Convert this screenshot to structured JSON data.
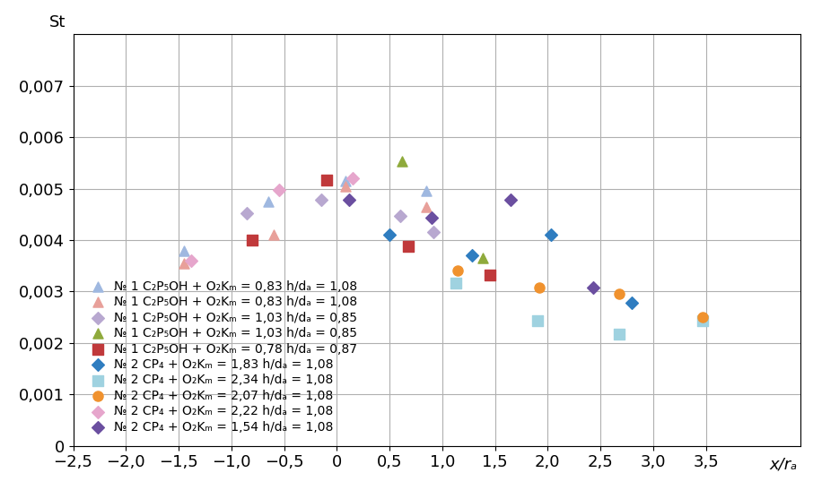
{
  "chart_data": {
    "type": "scatter",
    "x_label": "x/rₐ",
    "y_label": "St",
    "xlim": [
      -2.5,
      4.4
    ],
    "ylim": [
      0,
      0.008
    ],
    "xticks": [
      {
        "value": -2.5,
        "label": "−2,5"
      },
      {
        "value": -2.0,
        "label": "−2,0"
      },
      {
        "value": -1.5,
        "label": "−1,5"
      },
      {
        "value": -1.0,
        "label": "−1,0"
      },
      {
        "value": -0.5,
        "label": "−0,5"
      },
      0,
      {
        "value": 0.5,
        "label": "0,5"
      },
      {
        "value": 1.0,
        "label": "1,0"
      },
      {
        "value": 1.5,
        "label": "1,5"
      },
      {
        "value": 2.0,
        "label": "2,0"
      },
      {
        "value": 2.5,
        "label": "2,5"
      },
      {
        "value": 3.0,
        "label": "3,0"
      },
      {
        "value": 3.5,
        "label": "3,5"
      }
    ],
    "yticks": [
      0,
      {
        "value": 0.001,
        "label": "0,001"
      },
      {
        "value": 0.002,
        "label": "0,002"
      },
      {
        "value": 0.003,
        "label": "0,003"
      },
      {
        "value": 0.004,
        "label": "0,004"
      },
      {
        "value": 0.005,
        "label": "0,005"
      },
      {
        "value": 0.006,
        "label": "0,006"
      },
      {
        "value": 0.007,
        "label": "0,007"
      }
    ],
    "grid": true,
    "legend": "lower left",
    "series": [
      {
        "name": "№ 1 C₂P₅OH + O₂Kₘ = 0,83 h/dₐ = 1,08",
        "color": "#9fb8e0",
        "marker": "triangle",
        "x": [
          -1.45,
          -0.65,
          0.08,
          0.85
        ],
        "values": [
          0.0038,
          0.00475,
          0.00515,
          0.00495
        ]
      },
      {
        "name": "№ 1 C₂P₅OH + O₂Kₘ = 0,83 h/dₐ = 1,08",
        "color": "#e8a09a",
        "marker": "triangle",
        "x": [
          -1.45,
          -0.6,
          0.08,
          0.85
        ],
        "values": [
          0.00355,
          0.0041,
          0.00505,
          0.00465
        ]
      },
      {
        "name": "№ 1 C₂P₅OH + O₂Kₘ = 1,03 h/dₐ = 0,85",
        "color": "#b8a8d0",
        "marker": "diamond",
        "x": [
          -0.85,
          -0.15,
          0.6,
          0.92
        ],
        "values": [
          0.00453,
          0.00478,
          0.00447,
          0.00415
        ]
      },
      {
        "name": "№ 1 C₂P₅OH + O₂Kₘ = 1,03 h/dₐ = 0,85",
        "color": "#8faa3c",
        "marker": "triangle",
        "x": [
          0.62,
          1.38
        ],
        "values": [
          0.00553,
          0.00365
        ]
      },
      {
        "name": "№ 1 C₂P₅OH + O₂Kₘ = 0,78 h/dₐ = 0,87",
        "color": "#c0393b",
        "marker": "square",
        "x": [
          -0.8,
          -0.1,
          0.68,
          1.45
        ],
        "values": [
          0.004,
          0.00517,
          0.00387,
          0.00333
        ]
      },
      {
        "name": "№ 2 CP₄ + O₂Kₘ = 1,83 h/dₐ = 1,08",
        "color": "#2f7dc0",
        "marker": "diamond",
        "x": [
          0.5,
          1.28,
          2.03,
          2.8
        ],
        "values": [
          0.0041,
          0.0037,
          0.0041,
          0.00278
        ]
      },
      {
        "name": "№ 2 CP₄ + O₂Kₘ = 2,34 h/dₐ = 1,08",
        "color": "#9fd2e0",
        "marker": "square",
        "x": [
          1.13,
          1.9,
          2.68,
          3.47
        ],
        "values": [
          0.00316,
          0.00243,
          0.00218,
          0.00243
        ]
      },
      {
        "name": "№ 2 CP₄ + O₂Kₘ = 2,07 h/dₐ = 1,08",
        "color": "#f0922e",
        "marker": "circle",
        "x": [
          1.15,
          1.92,
          2.68,
          3.47
        ],
        "values": [
          0.0034,
          0.00307,
          0.00295,
          0.0025
        ]
      },
      {
        "name": "№ 2 CP₄ + O₂Kₘ = 2,22 h/dₐ = 1,08",
        "color": "#e6a6cc",
        "marker": "diamond",
        "x": [
          -1.38,
          -0.55,
          0.15
        ],
        "values": [
          0.0036,
          0.00497,
          0.0052
        ]
      },
      {
        "name": "№ 2 CP₄ + O₂Kₘ = 1,54 h/dₐ = 1,08",
        "color": "#6b4fa0",
        "marker": "diamond",
        "x": [
          0.12,
          0.9,
          1.65,
          2.43
        ],
        "values": [
          0.00478,
          0.00443,
          0.00478,
          0.00307
        ]
      }
    ]
  }
}
